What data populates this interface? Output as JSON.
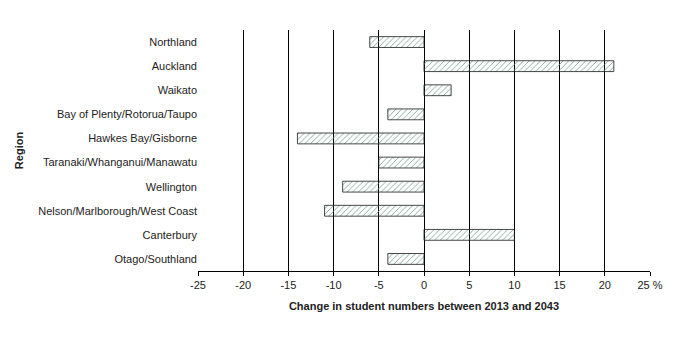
{
  "chart_data": {
    "type": "bar",
    "orientation": "horizontal",
    "categories": [
      "Northland",
      "Auckland",
      "Waikato",
      "Bay of Plenty/Rotorua/Taupo",
      "Hawkes Bay/Gisborne",
      "Taranaki/Whanganui/Manawatu",
      "Wellington",
      "Nelson/Marlborough/West Coast",
      "Canterbury",
      "Otago/Southland"
    ],
    "values": [
      -6,
      21,
      3,
      -4,
      -14,
      -5,
      -9,
      -11,
      10,
      -4
    ],
    "color": "#2f6b5b",
    "x_label": "Change in student numbers between 2013 and 2043",
    "y_label": "Region",
    "xlim": [
      -25,
      25
    ],
    "xticks": [
      -25,
      -20,
      -15,
      -10,
      -5,
      0,
      5,
      10,
      15,
      20,
      {
        "value": 25,
        "label": "25 %"
      }
    ],
    "grid": true
  }
}
